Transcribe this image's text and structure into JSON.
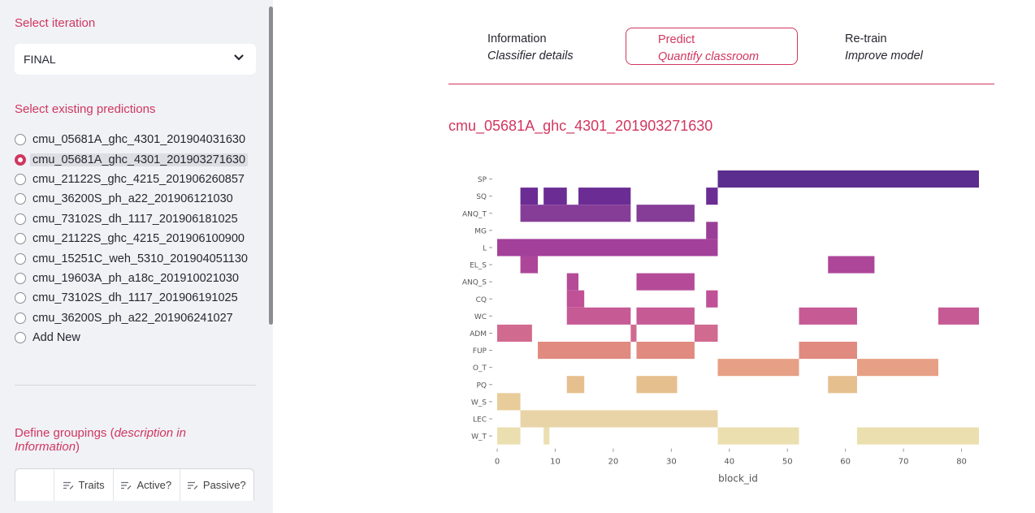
{
  "sidebar": {
    "iteration_label": "Select iteration",
    "iteration_value": "FINAL",
    "predictions_label": "Select existing predictions",
    "predictions": [
      "cmu_05681A_ghc_4301_201904031630",
      "cmu_05681A_ghc_4301_201903271630",
      "cmu_21122S_ghc_4215_201906260857",
      "cmu_36200S_ph_a22_201906121030",
      "cmu_73102S_dh_1117_201906181025",
      "cmu_21122S_ghc_4215_201906100900",
      "cmu_15251C_weh_5310_201904051130",
      "cmu_19603A_ph_a18c_201910021030",
      "cmu_73102S_dh_1117_201906191025",
      "cmu_36200S_ph_a22_201906241027",
      "Add New"
    ],
    "selected_index": 1,
    "groupings_prefix": "Define groupings (",
    "groupings_em1": "description in",
    "groupings_em2": "Information",
    "groupings_suffix": ")",
    "grid_columns": [
      "",
      "Traits",
      "Active?",
      "Passive?"
    ]
  },
  "tabs": [
    {
      "title": "Information",
      "subtitle": "Classifier details"
    },
    {
      "title": "Predict",
      "subtitle": "Quantify classroom"
    },
    {
      "title": "Re-train",
      "subtitle": "Improve model"
    }
  ],
  "active_tab": 1,
  "chart_title": "cmu_05681A_ghc_4301_201903271630",
  "colors": {
    "accent": "#d1365f",
    "sidebar_bg": "#f0f2f6"
  },
  "chart_data": {
    "type": "heatmap",
    "xlabel": "block_id",
    "ylabel": "",
    "xlim": [
      0,
      83
    ],
    "xticks": [
      0,
      10,
      20,
      30,
      40,
      50,
      60,
      70,
      80
    ],
    "categories": [
      "SP",
      "SQ",
      "ANQ_T",
      "MG",
      "L",
      "EL_S",
      "ANQ_S",
      "CQ",
      "WC",
      "ADM",
      "FUP",
      "O_T",
      "PQ",
      "W_S",
      "LEC",
      "W_T"
    ],
    "row_colors": [
      "#5b2d8e",
      "#6b2d94",
      "#853d98",
      "#9a3f98",
      "#a3419a",
      "#ad4699",
      "#b54b98",
      "#c05196",
      "#c65a95",
      "#d16a8f",
      "#e08a80",
      "#e6a085",
      "#e6bf8f",
      "#e8cc9a",
      "#e9d4a8",
      "#ebdfb0"
    ],
    "series": [
      {
        "name": "SP",
        "intervals": [
          [
            38,
            83
          ]
        ]
      },
      {
        "name": "SQ",
        "intervals": [
          [
            4,
            7
          ],
          [
            8,
            12
          ],
          [
            14,
            23
          ],
          [
            36,
            38
          ]
        ]
      },
      {
        "name": "ANQ_T",
        "intervals": [
          [
            4,
            23
          ],
          [
            24,
            34
          ]
        ]
      },
      {
        "name": "MG",
        "intervals": [
          [
            36,
            38
          ]
        ]
      },
      {
        "name": "L",
        "intervals": [
          [
            0,
            38
          ]
        ]
      },
      {
        "name": "EL_S",
        "intervals": [
          [
            4,
            7
          ],
          [
            57,
            65
          ]
        ]
      },
      {
        "name": "ANQ_S",
        "intervals": [
          [
            12,
            14
          ],
          [
            24,
            34
          ]
        ]
      },
      {
        "name": "CQ",
        "intervals": [
          [
            12,
            15
          ],
          [
            36,
            38
          ]
        ]
      },
      {
        "name": "WC",
        "intervals": [
          [
            12,
            23
          ],
          [
            24,
            34
          ],
          [
            52,
            62
          ],
          [
            76,
            83
          ]
        ]
      },
      {
        "name": "ADM",
        "intervals": [
          [
            0,
            6
          ],
          [
            23,
            24
          ],
          [
            34,
            38
          ]
        ]
      },
      {
        "name": "FUP",
        "intervals": [
          [
            7,
            23
          ],
          [
            24,
            34
          ],
          [
            52,
            62
          ]
        ]
      },
      {
        "name": "O_T",
        "intervals": [
          [
            38,
            52
          ],
          [
            62,
            76
          ]
        ]
      },
      {
        "name": "PQ",
        "intervals": [
          [
            12,
            15
          ],
          [
            24,
            31
          ],
          [
            57,
            62
          ]
        ]
      },
      {
        "name": "W_S",
        "intervals": [
          [
            0,
            4
          ]
        ]
      },
      {
        "name": "LEC",
        "intervals": [
          [
            4,
            38
          ]
        ]
      },
      {
        "name": "W_T",
        "intervals": [
          [
            0,
            4
          ],
          [
            8,
            9
          ],
          [
            38,
            52
          ],
          [
            62,
            83
          ]
        ]
      }
    ]
  }
}
